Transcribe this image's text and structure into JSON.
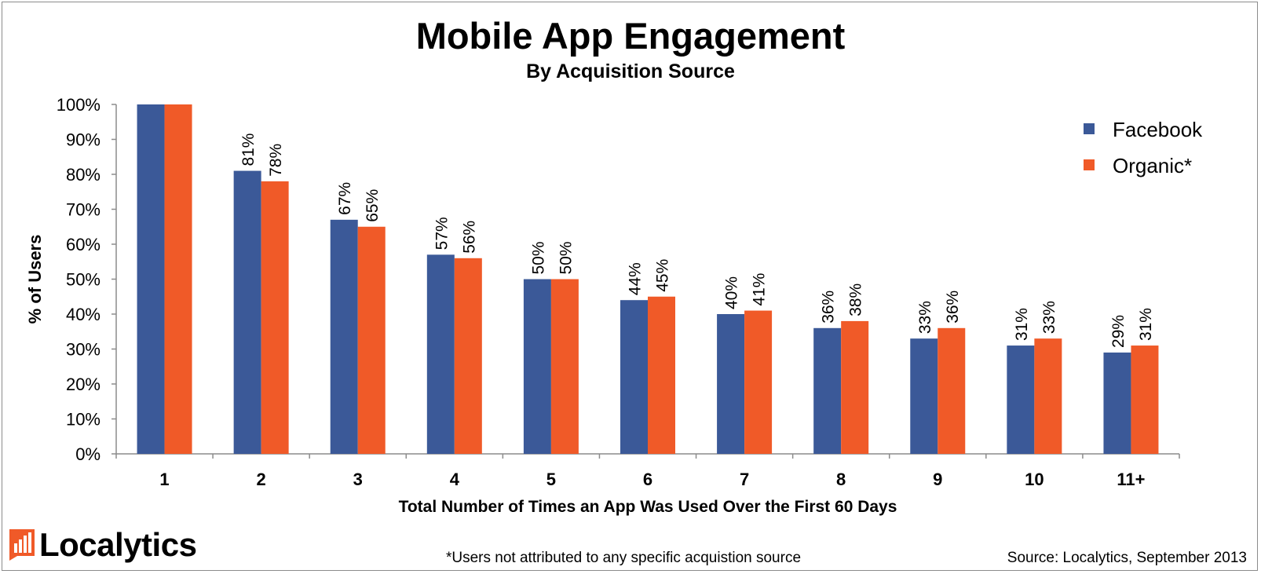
{
  "chart_data": {
    "type": "bar",
    "title": "Mobile App Engagement",
    "subtitle": "By Acquisition Source",
    "xlabel": "Total Number of Times an App Was Used Over the First 60 Days",
    "ylabel": "% of Users",
    "categories": [
      "1",
      "2",
      "3",
      "4",
      "5",
      "6",
      "7",
      "8",
      "9",
      "10",
      "11+"
    ],
    "series": [
      {
        "name": "Facebook",
        "color": "#3b5998",
        "values": [
          100,
          81,
          67,
          57,
          50,
          44,
          40,
          36,
          33,
          31,
          29
        ],
        "labels": [
          "",
          "81%",
          "67%",
          "57%",
          "50%",
          "44%",
          "40%",
          "36%",
          "33%",
          "31%",
          "29%"
        ]
      },
      {
        "name": "Organic*",
        "color": "#f05a28",
        "values": [
          100,
          78,
          65,
          56,
          50,
          45,
          41,
          38,
          36,
          33,
          31
        ],
        "labels": [
          "",
          "78%",
          "65%",
          "56%",
          "50%",
          "45%",
          "41%",
          "38%",
          "36%",
          "33%",
          "31%"
        ]
      }
    ],
    "ylim": [
      0,
      100
    ],
    "yticks": [
      0,
      10,
      20,
      30,
      40,
      50,
      60,
      70,
      80,
      90,
      100
    ],
    "ytick_labels": [
      "0%",
      "10%",
      "20%",
      "30%",
      "40%",
      "50%",
      "60%",
      "70%",
      "80%",
      "90%",
      "100%"
    ],
    "grid": false,
    "legend_position": "top-right"
  },
  "logo": {
    "text": "Localytics",
    "icon": "bar-chart-icon",
    "color": "#f05a28"
  },
  "footnote": "*Users not attributed to any specific acquistion source",
  "source": "Source: Localytics, September 2013"
}
